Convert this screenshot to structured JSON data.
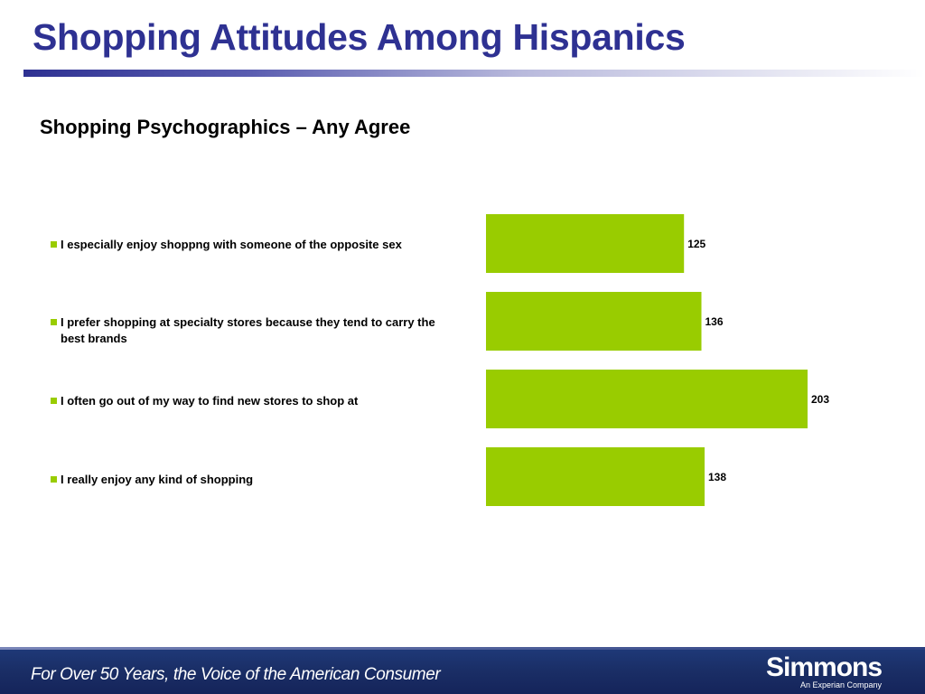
{
  "slide": {
    "title": "Shopping Attitudes Among Hispanics"
  },
  "chart_data": {
    "type": "bar",
    "orientation": "horizontal",
    "title": "Shopping Psychographics – Any Agree",
    "categories": [
      "I especially enjoy shoppng with someone of the opposite sex",
      "I prefer shopping at specialty stores because they tend to carry the best brands",
      "I often go out of my way to find new stores to shop at",
      "I really enjoy any kind of shopping"
    ],
    "values": [
      125,
      136,
      203,
      138
    ],
    "data_labels": [
      "125",
      "136",
      "203",
      "138"
    ],
    "bar_color": "#99cc00",
    "legend_position": "left",
    "grid": false,
    "xlim": [
      0,
      203
    ]
  },
  "footer": {
    "tagline": "For Over 50 Years, the Voice of the American Consumer",
    "brand_name": "Simmons",
    "brand_subtitle": "An Experian Company"
  },
  "colors": {
    "title": "#2e3192",
    "footer_background": "#1a2e66"
  }
}
